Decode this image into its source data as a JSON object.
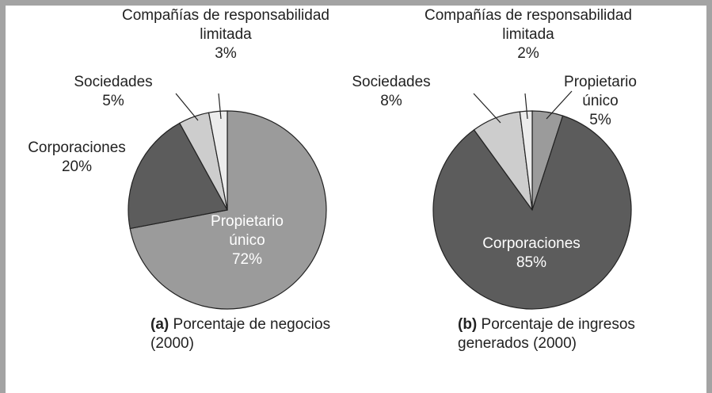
{
  "chart_data": [
    {
      "type": "pie",
      "categories": [
        "Propietario único",
        "Corporaciones",
        "Sociedades",
        "Compañías de responsabilidad limitada"
      ],
      "values": [
        72,
        20,
        5,
        3
      ],
      "value_labels": [
        "72%",
        "20%",
        "5%",
        "3%"
      ],
      "colors": [
        "#9b9b9b",
        "#5c5c5c",
        "#cdcdcd",
        "#ececec"
      ],
      "caption_label": "(a)",
      "caption": "Porcentaje de negocios (2000)"
    },
    {
      "type": "pie",
      "categories": [
        "Propietario único",
        "Corporaciones",
        "Sociedades",
        "Compañías de responsabilidad limitada"
      ],
      "values": [
        5,
        85,
        8,
        2
      ],
      "value_labels": [
        "5%",
        "85%",
        "8%",
        "2%"
      ],
      "colors": [
        "#9b9b9b",
        "#5c5c5c",
        "#cdcdcd",
        "#ececec"
      ],
      "caption_label": "(b)",
      "caption": "Porcentaje de ingresos generados (2000)"
    }
  ]
}
